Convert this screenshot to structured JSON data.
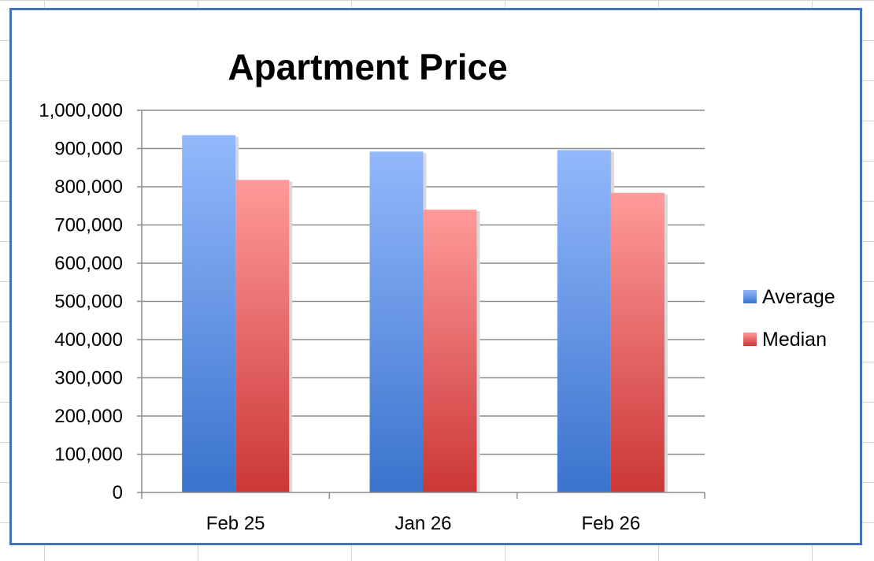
{
  "chart_data": {
    "type": "bar",
    "title": "Apartment Price",
    "categories": [
      "Feb 25",
      "Jan 26",
      "Feb 26"
    ],
    "series": [
      {
        "name": "Average",
        "values": [
          935000,
          892000,
          896000
        ],
        "color": "#7aa7f2"
      },
      {
        "name": "Median",
        "values": [
          818000,
          740000,
          784000
        ],
        "color": "#ee7c7c"
      }
    ],
    "ylim": [
      0,
      1000000
    ],
    "yticks": [
      0,
      100000,
      200000,
      300000,
      400000,
      500000,
      600000,
      700000,
      800000,
      900000,
      1000000
    ],
    "ytick_labels": [
      "0",
      "100,000",
      "200,000",
      "300,000",
      "400,000",
      "500,000",
      "600,000",
      "700,000",
      "800,000",
      "900,000",
      "1,000,000"
    ],
    "grid": true,
    "legend_position": "right"
  }
}
